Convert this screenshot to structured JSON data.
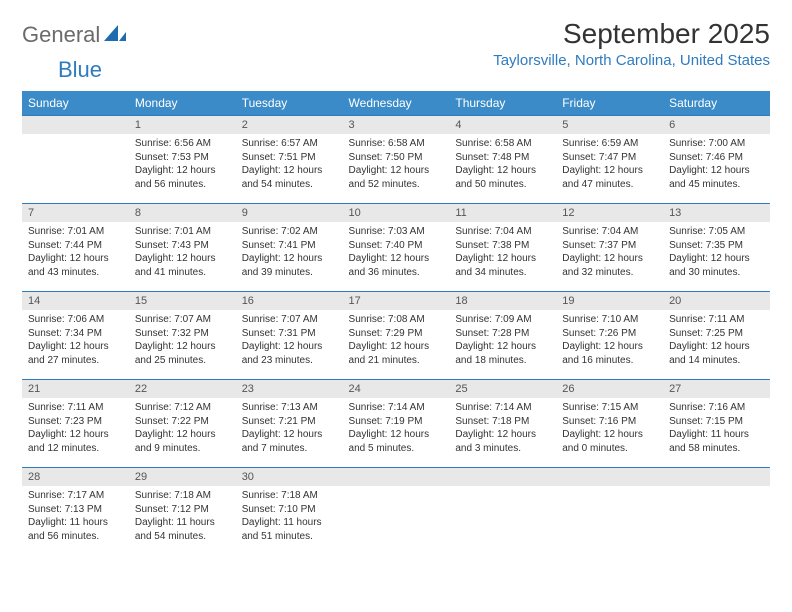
{
  "brand": {
    "part1": "General",
    "part2": "Blue"
  },
  "title": "September 2025",
  "location": "Taylorsville, North Carolina, United States",
  "colors": {
    "header_bg": "#3b8bc9",
    "header_text": "#ffffff",
    "border": "#2f7bbf",
    "daynum_bg": "#e8e8e8",
    "accent": "#2f7bbf",
    "logo_gray": "#6b6b6b"
  },
  "weekdays": [
    "Sunday",
    "Monday",
    "Tuesday",
    "Wednesday",
    "Thursday",
    "Friday",
    "Saturday"
  ],
  "weeks": [
    [
      null,
      {
        "n": "1",
        "sr": "6:56 AM",
        "ss": "7:53 PM",
        "dl": "12 hours and 56 minutes."
      },
      {
        "n": "2",
        "sr": "6:57 AM",
        "ss": "7:51 PM",
        "dl": "12 hours and 54 minutes."
      },
      {
        "n": "3",
        "sr": "6:58 AM",
        "ss": "7:50 PM",
        "dl": "12 hours and 52 minutes."
      },
      {
        "n": "4",
        "sr": "6:58 AM",
        "ss": "7:48 PM",
        "dl": "12 hours and 50 minutes."
      },
      {
        "n": "5",
        "sr": "6:59 AM",
        "ss": "7:47 PM",
        "dl": "12 hours and 47 minutes."
      },
      {
        "n": "6",
        "sr": "7:00 AM",
        "ss": "7:46 PM",
        "dl": "12 hours and 45 minutes."
      }
    ],
    [
      {
        "n": "7",
        "sr": "7:01 AM",
        "ss": "7:44 PM",
        "dl": "12 hours and 43 minutes."
      },
      {
        "n": "8",
        "sr": "7:01 AM",
        "ss": "7:43 PM",
        "dl": "12 hours and 41 minutes."
      },
      {
        "n": "9",
        "sr": "7:02 AM",
        "ss": "7:41 PM",
        "dl": "12 hours and 39 minutes."
      },
      {
        "n": "10",
        "sr": "7:03 AM",
        "ss": "7:40 PM",
        "dl": "12 hours and 36 minutes."
      },
      {
        "n": "11",
        "sr": "7:04 AM",
        "ss": "7:38 PM",
        "dl": "12 hours and 34 minutes."
      },
      {
        "n": "12",
        "sr": "7:04 AM",
        "ss": "7:37 PM",
        "dl": "12 hours and 32 minutes."
      },
      {
        "n": "13",
        "sr": "7:05 AM",
        "ss": "7:35 PM",
        "dl": "12 hours and 30 minutes."
      }
    ],
    [
      {
        "n": "14",
        "sr": "7:06 AM",
        "ss": "7:34 PM",
        "dl": "12 hours and 27 minutes."
      },
      {
        "n": "15",
        "sr": "7:07 AM",
        "ss": "7:32 PM",
        "dl": "12 hours and 25 minutes."
      },
      {
        "n": "16",
        "sr": "7:07 AM",
        "ss": "7:31 PM",
        "dl": "12 hours and 23 minutes."
      },
      {
        "n": "17",
        "sr": "7:08 AM",
        "ss": "7:29 PM",
        "dl": "12 hours and 21 minutes."
      },
      {
        "n": "18",
        "sr": "7:09 AM",
        "ss": "7:28 PM",
        "dl": "12 hours and 18 minutes."
      },
      {
        "n": "19",
        "sr": "7:10 AM",
        "ss": "7:26 PM",
        "dl": "12 hours and 16 minutes."
      },
      {
        "n": "20",
        "sr": "7:11 AM",
        "ss": "7:25 PM",
        "dl": "12 hours and 14 minutes."
      }
    ],
    [
      {
        "n": "21",
        "sr": "7:11 AM",
        "ss": "7:23 PM",
        "dl": "12 hours and 12 minutes."
      },
      {
        "n": "22",
        "sr": "7:12 AM",
        "ss": "7:22 PM",
        "dl": "12 hours and 9 minutes."
      },
      {
        "n": "23",
        "sr": "7:13 AM",
        "ss": "7:21 PM",
        "dl": "12 hours and 7 minutes."
      },
      {
        "n": "24",
        "sr": "7:14 AM",
        "ss": "7:19 PM",
        "dl": "12 hours and 5 minutes."
      },
      {
        "n": "25",
        "sr": "7:14 AM",
        "ss": "7:18 PM",
        "dl": "12 hours and 3 minutes."
      },
      {
        "n": "26",
        "sr": "7:15 AM",
        "ss": "7:16 PM",
        "dl": "12 hours and 0 minutes."
      },
      {
        "n": "27",
        "sr": "7:16 AM",
        "ss": "7:15 PM",
        "dl": "11 hours and 58 minutes."
      }
    ],
    [
      {
        "n": "28",
        "sr": "7:17 AM",
        "ss": "7:13 PM",
        "dl": "11 hours and 56 minutes."
      },
      {
        "n": "29",
        "sr": "7:18 AM",
        "ss": "7:12 PM",
        "dl": "11 hours and 54 minutes."
      },
      {
        "n": "30",
        "sr": "7:18 AM",
        "ss": "7:10 PM",
        "dl": "11 hours and 51 minutes."
      },
      null,
      null,
      null,
      null
    ]
  ],
  "labels": {
    "sunrise": "Sunrise: ",
    "sunset": "Sunset: ",
    "daylight": "Daylight: "
  }
}
